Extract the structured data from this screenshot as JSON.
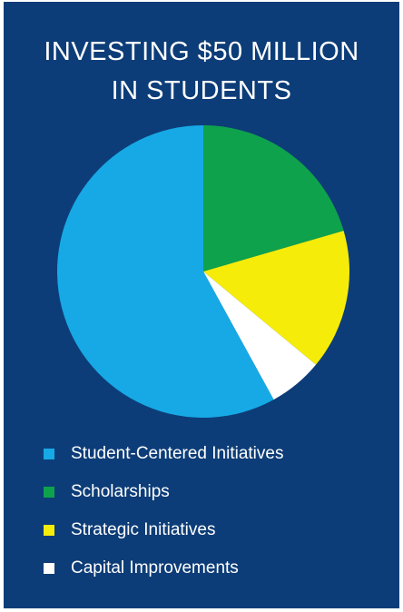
{
  "title_lines": [
    "INVESTING $50 MILLION",
    "IN STUDENTS"
  ],
  "chart_data": {
    "type": "pie",
    "categories": [
      "Student-Centered Initiatives",
      "Scholarships",
      "Strategic Initiatives",
      "Capital Improvements"
    ],
    "values": [
      58,
      20.5,
      15.5,
      6
    ],
    "colors": [
      "#16a9e6",
      "#0ea24c",
      "#f5ec0a",
      "#ffffff"
    ],
    "legend_position": "bottom"
  },
  "colors": {
    "background": "#0d3d78"
  }
}
